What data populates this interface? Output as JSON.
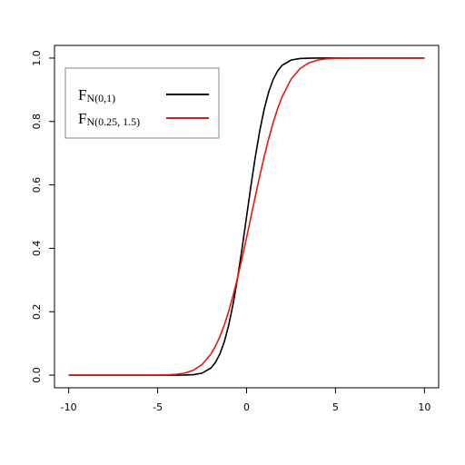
{
  "chart_data": {
    "type": "line",
    "x": [
      -10,
      -8,
      -6,
      -5,
      -4.5,
      -4,
      -3.5,
      -3,
      -2.5,
      -2,
      -1.75,
      -1.5,
      -1.25,
      -1,
      -0.75,
      -0.5,
      -0.25,
      0,
      0.25,
      0.5,
      0.75,
      1,
      1.25,
      1.5,
      1.75,
      2,
      2.5,
      3,
      3.5,
      4,
      4.5,
      5,
      6,
      8,
      10
    ],
    "series": [
      {
        "name": "F",
        "subscript": "N(0,1)",
        "color": "#000000",
        "values": [
          0,
          0,
          0,
          0,
          0,
          0,
          0.0002,
          0.0013,
          0.0062,
          0.0228,
          0.0401,
          0.0668,
          0.1056,
          0.1587,
          0.2266,
          0.3085,
          0.4013,
          0.5,
          0.5987,
          0.6915,
          0.7734,
          0.8413,
          0.8944,
          0.9332,
          0.9599,
          0.9772,
          0.9938,
          0.9987,
          0.9998,
          1,
          1,
          1,
          1,
          1,
          1
        ]
      },
      {
        "name": "F",
        "subscript": "N(0.25, 1.5)",
        "color": "#e8170f",
        "values": [
          0,
          0,
          0,
          0.0002,
          0.0008,
          0.0023,
          0.0062,
          0.0151,
          0.0334,
          0.0668,
          0.0912,
          0.1217,
          0.1587,
          0.2023,
          0.2525,
          0.3085,
          0.3694,
          0.4338,
          0.5,
          0.5662,
          0.6306,
          0.6915,
          0.7475,
          0.7977,
          0.8413,
          0.8783,
          0.9332,
          0.9666,
          0.9849,
          0.9938,
          0.9977,
          0.9992,
          0.9999,
          1,
          1
        ]
      }
    ],
    "xlim": [
      -10.8,
      10.8
    ],
    "xticks": [
      -10,
      -5,
      0,
      5,
      10
    ],
    "ylim": [
      -0.04,
      1.04
    ],
    "yticks": [
      {
        "value": 0,
        "label": "0.0"
      },
      0.2,
      0.4,
      0.6,
      0.8,
      {
        "value": 1,
        "label": "1.0"
      }
    ],
    "legend": "top-left"
  }
}
